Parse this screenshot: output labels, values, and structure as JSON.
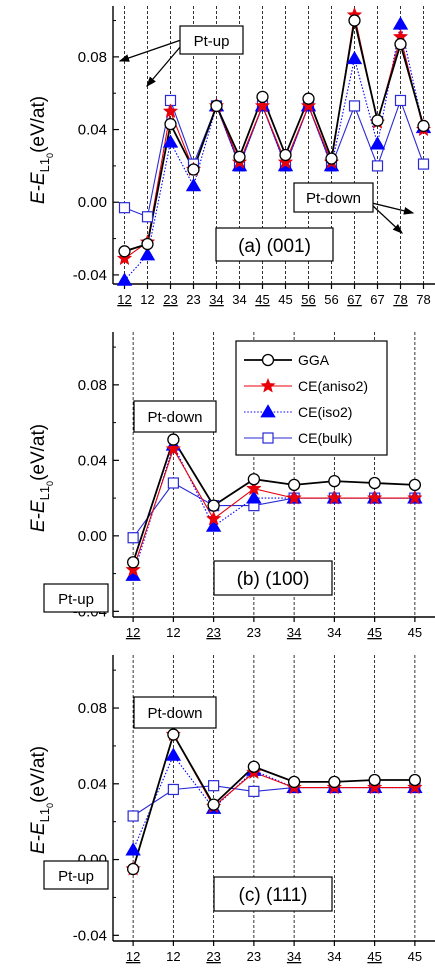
{
  "chart_data": [
    {
      "type": "line",
      "title": "(a) (001)",
      "ylabel": {
        "main": "E-E",
        "sub": "L1",
        "sub2": "0",
        "unit": "(eV/at)"
      },
      "ylim": [
        -0.045,
        0.108
      ],
      "yticks": [
        -0.04,
        0.0,
        0.04,
        0.08
      ],
      "ytick_labels": [
        "-0.04",
        "0.00",
        "0.04",
        "0.08"
      ],
      "x": [
        1,
        2,
        3,
        4,
        5,
        6,
        7,
        8,
        9,
        10,
        11,
        12,
        13,
        14
      ],
      "xlim": [
        0.5,
        14.5
      ],
      "categories": [
        "12",
        "12",
        "23",
        "23",
        "34",
        "34",
        "45",
        "45",
        "56",
        "56",
        "67",
        "67",
        "78",
        "78"
      ],
      "underlined": [
        true,
        false,
        true,
        false,
        true,
        false,
        true,
        false,
        true,
        false,
        true,
        false,
        true,
        false
      ],
      "series": [
        {
          "name": "GGA",
          "values": [
            -0.027,
            -0.023,
            0.043,
            0.018,
            0.053,
            0.025,
            0.058,
            0.026,
            0.057,
            0.024,
            0.1,
            0.045,
            0.087,
            0.042
          ]
        },
        {
          "name": "CE(aniso2)",
          "values": [
            -0.031,
            -0.022,
            0.05,
            0.018,
            0.053,
            0.022,
            0.053,
            0.022,
            0.053,
            0.022,
            0.103,
            0.044,
            0.091,
            0.04
          ]
        },
        {
          "name": "CE(iso2)",
          "values": [
            -0.043,
            -0.029,
            0.033,
            0.009,
            0.053,
            0.02,
            0.053,
            0.02,
            0.053,
            0.02,
            0.079,
            0.032,
            0.098,
            0.041
          ]
        },
        {
          "name": "CE(bulk)",
          "values": [
            -0.003,
            -0.008,
            0.056,
            0.021,
            0.053,
            0.02,
            0.053,
            0.02,
            0.053,
            0.02,
            0.053,
            0.02,
            0.056,
            0.021
          ]
        }
      ],
      "annotations": [
        "Pt-up",
        "Pt-down"
      ]
    },
    {
      "type": "line",
      "title": "(b) (100)",
      "ylabel": {
        "main": "E-E",
        "sub": "L1",
        "sub2": "0",
        "unit": "(eV/at)"
      },
      "ylim": [
        -0.043,
        0.108
      ],
      "yticks": [
        -0.04,
        0.0,
        0.04,
        0.08
      ],
      "ytick_labels": [
        "-0.04",
        "0.00",
        "0.04",
        "0.08"
      ],
      "x": [
        1,
        2,
        3,
        4,
        5,
        6,
        7,
        8
      ],
      "xlim": [
        0.5,
        8.5
      ],
      "categories": [
        "12",
        "12",
        "23",
        "23",
        "34",
        "34",
        "45",
        "45"
      ],
      "underlined": [
        true,
        false,
        true,
        false,
        true,
        false,
        true,
        false
      ],
      "series": [
        {
          "name": "GGA",
          "values": [
            -0.014,
            0.051,
            0.016,
            0.03,
            0.027,
            0.029,
            0.028,
            0.027
          ]
        },
        {
          "name": "CE(aniso2)",
          "values": [
            -0.018,
            0.046,
            0.009,
            0.025,
            0.02,
            0.02,
            0.02,
            0.02
          ]
        },
        {
          "name": "CE(iso2)",
          "values": [
            -0.021,
            0.048,
            0.005,
            0.02,
            0.02,
            0.02,
            0.02,
            0.02
          ]
        },
        {
          "name": "CE(bulk)",
          "values": [
            -0.001,
            0.028,
            0.016,
            0.016,
            0.02,
            0.02,
            0.02,
            0.02
          ]
        }
      ],
      "legend": {
        "placement": "top-right"
      },
      "annotations": [
        "Pt-down",
        "Pt-up"
      ]
    },
    {
      "type": "line",
      "title": "(c) (111)",
      "ylabel": {
        "main": "E-E",
        "sub": "L1",
        "sub2": "0",
        "unit": "(eV/at)"
      },
      "ylim": [
        -0.043,
        0.108
      ],
      "yticks": [
        -0.04,
        0.0,
        0.04,
        0.08
      ],
      "ytick_labels": [
        "-0.04",
        "0.00",
        "0.04",
        "0.08"
      ],
      "x": [
        1,
        2,
        3,
        4,
        5,
        6,
        7,
        8
      ],
      "xlim": [
        0.5,
        8.5
      ],
      "categories": [
        "12",
        "12",
        "23",
        "23",
        "34",
        "34",
        "45",
        "45"
      ],
      "underlined": [
        true,
        false,
        true,
        false,
        true,
        false,
        true,
        false
      ],
      "series": [
        {
          "name": "GGA",
          "values": [
            -0.005,
            0.066,
            0.029,
            0.049,
            0.041,
            0.041,
            0.042,
            0.042
          ]
        },
        {
          "name": "CE(aniso2)",
          "values": [
            -0.005,
            0.066,
            0.028,
            0.046,
            0.038,
            0.038,
            0.038,
            0.038
          ]
        },
        {
          "name": "CE(iso2)",
          "values": [
            0.005,
            0.055,
            0.027,
            0.047,
            0.038,
            0.038,
            0.038,
            0.038
          ]
        },
        {
          "name": "CE(bulk)",
          "values": [
            0.023,
            0.037,
            0.039,
            0.036,
            0.038,
            0.038,
            0.038,
            0.038
          ]
        }
      ],
      "annotations": [
        "Pt-down",
        "Pt-up"
      ]
    }
  ],
  "series_styles": [
    {
      "name": "GGA",
      "color": "#000000",
      "marker": "circle",
      "line": "solid"
    },
    {
      "name": "CE(aniso2)",
      "color": "#e8000b",
      "marker": "star",
      "line": "solid"
    },
    {
      "name": "CE(iso2)",
      "color": "#0000ff",
      "marker": "triangle",
      "line": "dotted"
    },
    {
      "name": "CE(bulk)",
      "color": "#2a2ad6",
      "marker": "square",
      "line": "solid"
    }
  ],
  "legend_labels": [
    "GGA",
    "CE(aniso2)",
    "CE(iso2)",
    "CE(bulk)"
  ],
  "annotation_labels": {
    "a_up": "Pt-up",
    "a_down": "Pt-down",
    "b_down": "Pt-down",
    "b_up": "Pt-up",
    "c_down": "Pt-down",
    "c_up": "Pt-up"
  },
  "panel_titles": {
    "a": "(a) (001)",
    "b": "(b) (100)",
    "c": "(c) (111)"
  }
}
